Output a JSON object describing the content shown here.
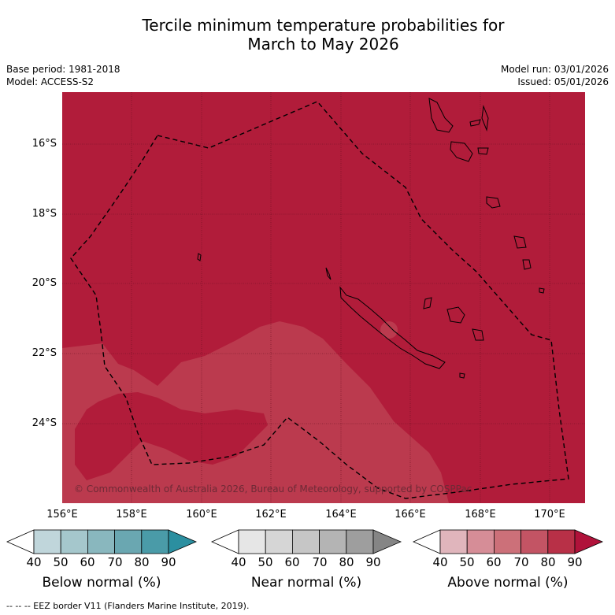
{
  "title_line1": "Tercile minimum temperature probabilities for",
  "title_line2": "March to May 2026",
  "base_period": "Base period: 1981-2018",
  "model": "Model: ACCESS-S2",
  "model_run": "Model run: 03/01/2026",
  "issued": "Issued: 05/01/2026",
  "lat_labels": [
    "16°S",
    "18°S",
    "20°S",
    "22°S",
    "24°S"
  ],
  "lon_labels": [
    "156°E",
    "158°E",
    "160°E",
    "162°E",
    "164°E",
    "166°E",
    "168°E",
    "170°E"
  ],
  "copyright": "© Commonwealth of Australia 2026, Bureau of Meteorology, supported by COSPPac",
  "colorbars": [
    {
      "title": "Below normal (%)",
      "colors": [
        "#c0d6db",
        "#a5c7cc",
        "#89b7be",
        "#6aa7b1",
        "#4a9ba8",
        "#2b8fa0"
      ]
    },
    {
      "title": "Near normal (%)",
      "colors": [
        "#e6e6e6",
        "#d6d6d6",
        "#c6c6c6",
        "#b4b4b4",
        "#9e9e9e",
        "#858585"
      ]
    },
    {
      "title": "Above normal (%)",
      "colors": [
        "#e0b5bc",
        "#d68d97",
        "#cc7079",
        "#c35464",
        "#b83047",
        "#b0123a"
      ]
    }
  ],
  "colorbar_ticks": [
    "40",
    "50",
    "60",
    "70",
    "80",
    "90"
  ],
  "footer": "--  --  -- EEZ border V11 (Flanders Marine Institute, 2019)."
}
